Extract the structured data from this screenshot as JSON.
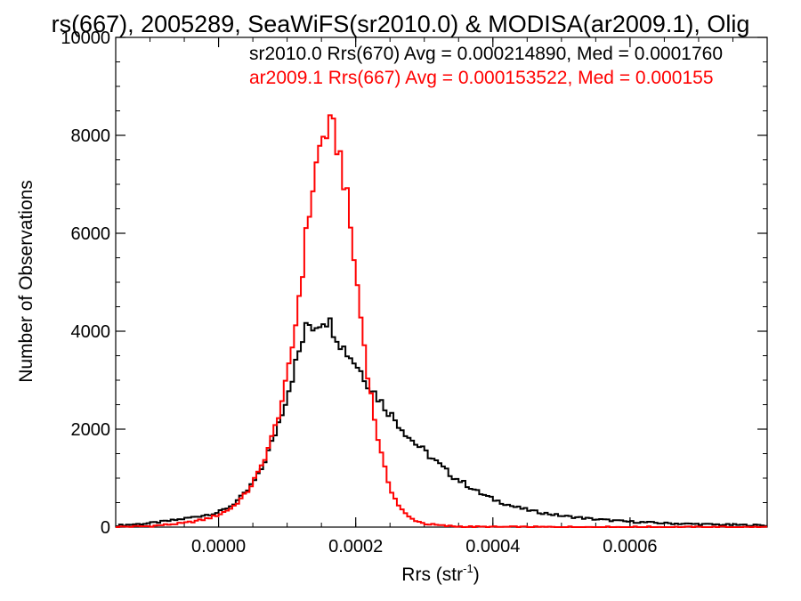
{
  "chart_data": {
    "type": "line",
    "title": "rs(667), 2005289, SeaWiFS(sr2010.0) & MODISA(ar2009.1), Olig",
    "xlabel": "Rrs (str",
    "xlabel_sup": "-1",
    "xlabel_close": ")",
    "ylabel": "Number of Observations",
    "xlim": [
      -0.00015,
      0.0008
    ],
    "ylim": [
      0,
      10000
    ],
    "x_ticks": [
      0.0,
      0.0002,
      0.0004,
      0.0006
    ],
    "x_tick_labels": [
      "0.0000",
      "0.0002",
      "0.0004",
      "0.0006"
    ],
    "y_ticks": [
      0,
      2000,
      4000,
      6000,
      8000,
      10000
    ],
    "y_tick_labels": [
      "0",
      "2000",
      "4000",
      "6000",
      "8000",
      "10000"
    ],
    "grid": false,
    "legend_position": "top-right",
    "series": [
      {
        "name": "sr2010.0 Rrs(670) Avg = 0.000214890, Med = 0.0001760",
        "color": "#000000",
        "points": [
          [
            -0.00015,
            30
          ],
          [
            -0.0001,
            80
          ],
          [
            -6e-05,
            150
          ],
          [
            -3e-05,
            220
          ],
          [
            0.0,
            300
          ],
          [
            2e-05,
            450
          ],
          [
            4e-05,
            700
          ],
          [
            6e-05,
            1100
          ],
          [
            8e-05,
            1800
          ],
          [
            0.0001,
            2700
          ],
          [
            0.00011,
            3200
          ],
          [
            0.00012,
            3700
          ],
          [
            0.00013,
            4150
          ],
          [
            0.00014,
            4100
          ],
          [
            0.000155,
            4300
          ],
          [
            0.00017,
            4000
          ],
          [
            0.00018,
            3700
          ],
          [
            0.0002,
            3350
          ],
          [
            0.00022,
            2900
          ],
          [
            0.00024,
            2500
          ],
          [
            0.00026,
            2150
          ],
          [
            0.00028,
            1800
          ],
          [
            0.0003,
            1550
          ],
          [
            0.00032,
            1300
          ],
          [
            0.00034,
            1050
          ],
          [
            0.00036,
            880
          ],
          [
            0.00038,
            700
          ],
          [
            0.0004,
            570
          ],
          [
            0.00043,
            420
          ],
          [
            0.00046,
            320
          ],
          [
            0.0005,
            230
          ],
          [
            0.00055,
            160
          ],
          [
            0.0006,
            110
          ],
          [
            0.00065,
            80
          ],
          [
            0.0007,
            60
          ],
          [
            0.00075,
            45
          ],
          [
            0.0008,
            35
          ]
        ]
      },
      {
        "name": "ar2009.1 Rrs(667) Avg = 0.000153522, Med = 0.000155",
        "color": "#ff0000",
        "points": [
          [
            -0.00015,
            5
          ],
          [
            -0.0001,
            20
          ],
          [
            -5e-05,
            80
          ],
          [
            -2e-05,
            160
          ],
          [
            0.0,
            250
          ],
          [
            2e-05,
            400
          ],
          [
            4e-05,
            680
          ],
          [
            6e-05,
            1150
          ],
          [
            8e-05,
            1900
          ],
          [
            0.0001,
            3000
          ],
          [
            0.00011,
            3900
          ],
          [
            0.00012,
            5000
          ],
          [
            0.00013,
            6200
          ],
          [
            0.00014,
            7200
          ],
          [
            0.00015,
            7900
          ],
          [
            0.00016,
            8150
          ],
          [
            0.00017,
            8000
          ],
          [
            0.00018,
            7400
          ],
          [
            0.00019,
            6400
          ],
          [
            0.0002,
            5200
          ],
          [
            0.00021,
            4000
          ],
          [
            0.00022,
            2900
          ],
          [
            0.00023,
            2000
          ],
          [
            0.00024,
            1300
          ],
          [
            0.00025,
            820
          ],
          [
            0.00026,
            500
          ],
          [
            0.00027,
            300
          ],
          [
            0.00028,
            180
          ],
          [
            0.0003,
            70
          ],
          [
            0.00033,
            25
          ],
          [
            0.00036,
            8
          ],
          [
            0.0004,
            3
          ],
          [
            0.0005,
            1
          ],
          [
            0.0008,
            0
          ]
        ]
      }
    ]
  }
}
